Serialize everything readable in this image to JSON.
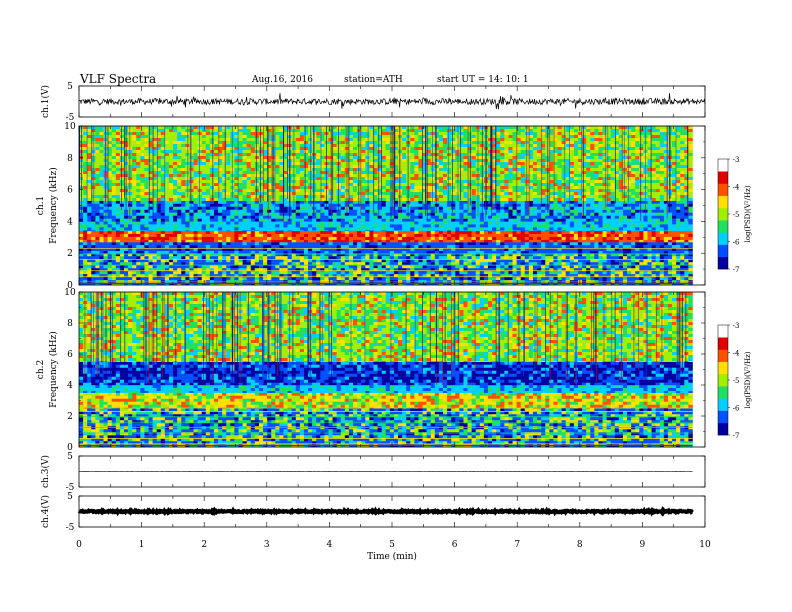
{
  "header": {
    "title": "VLF  Spectra",
    "date": "Aug.16, 2016",
    "station": "station=ATH",
    "start": "start  UT  =   14: 10: 1"
  },
  "chart_data": [
    {
      "type": "line",
      "panel": "ch1-waveform",
      "ylabel": "ch.1(V)",
      "y_ticks": [
        "5",
        "-5"
      ],
      "ylim": [
        -5,
        5
      ],
      "xlim": [
        0,
        10
      ],
      "baseline": 0,
      "noise_amplitude": 1.0,
      "color": "#000000"
    },
    {
      "type": "heatmap",
      "panel": "ch1-spectrogram",
      "ylabel_line1": "ch.1",
      "ylabel_line2": "Frequency  (kHz)",
      "y_ticks": [
        "0",
        "2",
        "4",
        "6",
        "8",
        "10"
      ],
      "ylim": [
        0,
        10
      ],
      "xlim": [
        0,
        9.8
      ],
      "colorbar": {
        "label": "log(PSD)(V²/Hz)",
        "ticks": [
          "-3",
          "-4",
          "-5",
          "-6",
          "-7"
        ],
        "range": [
          -7,
          -3
        ]
      },
      "bands": [
        {
          "from_khz": 0.0,
          "to_khz": 2.0,
          "texture": "lines"
        },
        {
          "from_khz": 2.0,
          "to_khz": 2.7,
          "texture": "blue"
        },
        {
          "from_khz": 2.7,
          "to_khz": 3.4,
          "texture": "red-band"
        },
        {
          "from_khz": 3.4,
          "to_khz": 4.0,
          "texture": "cyan"
        },
        {
          "from_khz": 4.0,
          "to_khz": 5.3,
          "texture": "blue-cyan"
        },
        {
          "from_khz": 5.3,
          "to_khz": 10.0,
          "texture": "green-yellow"
        }
      ]
    },
    {
      "type": "heatmap",
      "panel": "ch2-spectrogram",
      "ylabel_line1": "ch.2",
      "ylabel_line2": "Frequency  (kHz)",
      "y_ticks": [
        "0",
        "2",
        "4",
        "6",
        "8",
        "10"
      ],
      "ylim": [
        0,
        10
      ],
      "xlim": [
        0,
        9.8
      ],
      "colorbar": {
        "label": "log(PSD)(V²/Hz)",
        "ticks": [
          "-3",
          "-4",
          "-5",
          "-6",
          "-7"
        ],
        "range": [
          -7,
          -3
        ]
      },
      "bands": [
        {
          "from_khz": 0.0,
          "to_khz": 2.5,
          "texture": "lines"
        },
        {
          "from_khz": 2.5,
          "to_khz": 3.5,
          "texture": "yellow-band"
        },
        {
          "from_khz": 3.5,
          "to_khz": 4.0,
          "texture": "cyan"
        },
        {
          "from_khz": 4.0,
          "to_khz": 5.5,
          "texture": "dark-blue"
        },
        {
          "from_khz": 5.5,
          "to_khz": 10.0,
          "texture": "green-yellow"
        }
      ]
    },
    {
      "type": "line",
      "panel": "ch3-waveform",
      "ylabel": "ch.3(V)",
      "y_ticks": [
        "5",
        "-5"
      ],
      "ylim": [
        -5,
        5
      ],
      "xlim": [
        0,
        9.8
      ],
      "baseline": 0,
      "noise_amplitude": 0.05,
      "color": "#000000"
    },
    {
      "type": "line",
      "panel": "ch4-waveform",
      "ylabel": "ch.4(V)",
      "y_ticks": [
        "5",
        "-5"
      ],
      "ylim": [
        -5,
        5
      ],
      "xlim": [
        0,
        9.8
      ],
      "baseline": 0,
      "noise_amplitude": 0.25,
      "color": "#000000"
    }
  ],
  "x_axis": {
    "label": "Time  (min)",
    "ticks": [
      "0",
      "1",
      "2",
      "3",
      "4",
      "5",
      "6",
      "7",
      "8",
      "9",
      "10"
    ],
    "range": [
      0,
      10
    ]
  },
  "colorscale": [
    "#0000a0",
    "#0050ff",
    "#00d0ff",
    "#20e060",
    "#a0f000",
    "#ffe000",
    "#ff5000",
    "#e00000",
    "#ffffff"
  ]
}
